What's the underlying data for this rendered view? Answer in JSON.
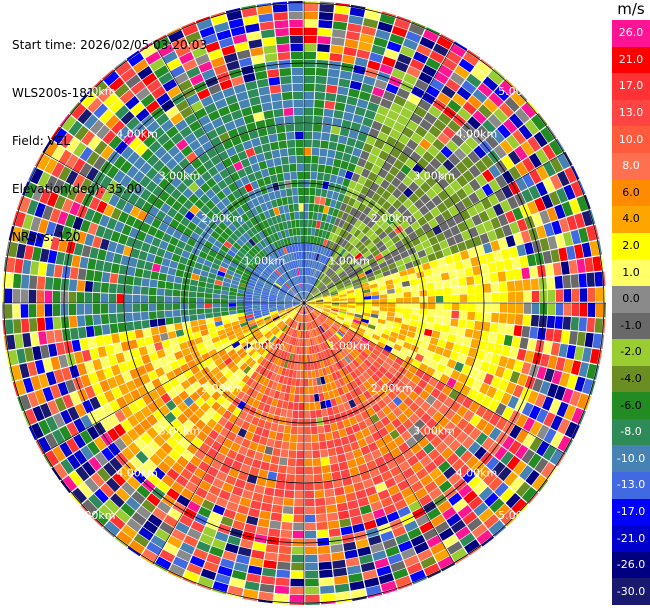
{
  "header": {
    "start_time": "Start time: 2026/02/05 03:20:03",
    "instrument": "WLS200s-181",
    "field": "Field: VEL",
    "elevation": "Elevation(deg): 35.00",
    "nrays": "NRays: 120"
  },
  "range_rings": {
    "ring_labels": [
      "1.00km",
      "2.00km",
      "3.00km",
      "4.00km",
      "5.00km"
    ]
  },
  "colorbar": {
    "unit": "m/s",
    "ticks": [
      "26.0",
      "21.0",
      "17.0",
      "13.0",
      "10.0",
      "8.0",
      "6.0",
      "4.0",
      "2.0",
      "1.0",
      "0.0",
      "-1.0",
      "-2.0",
      "-4.0",
      "-6.0",
      "-8.0",
      "-10.0",
      "-13.0",
      "-17.0",
      "-21.0",
      "-26.0",
      "-30.0"
    ],
    "colors": [
      "#ff1493",
      "#ff0000",
      "#ff3333",
      "#ff4444",
      "#ff5a3c",
      "#ff7050",
      "#ff8c00",
      "#ffa500",
      "#ffff00",
      "#ffff66",
      "#8a8a8a",
      "#696969",
      "#9acd32",
      "#6b8e23",
      "#228b22",
      "#2e8b57",
      "#4682b4",
      "#4169e1",
      "#0000ff",
      "#0000cd",
      "#000080",
      "#191970"
    ]
  }
}
